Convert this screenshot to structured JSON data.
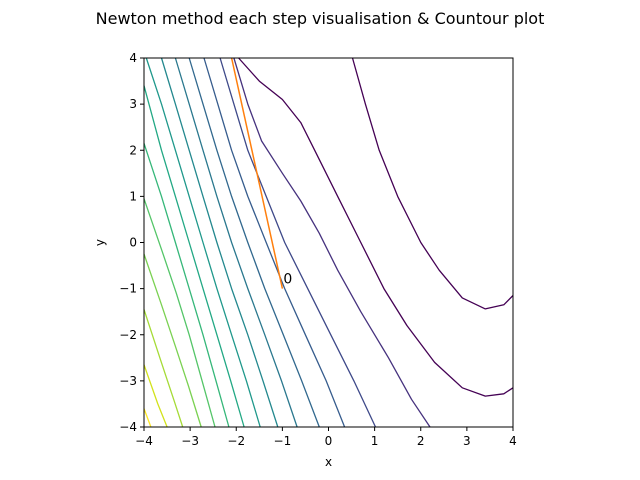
{
  "chart_data": {
    "type": "contour",
    "title": "Newton method each step visualisation & Countour plot",
    "xlabel": "x",
    "ylabel": "y",
    "xlim": [
      -4,
      4
    ],
    "ylim": [
      -4,
      4
    ],
    "xticks": [
      -4,
      -3,
      -2,
      -1,
      0,
      1,
      2,
      3,
      4
    ],
    "yticks": [
      -4,
      -3,
      -2,
      -1,
      0,
      1,
      2,
      3,
      4
    ],
    "grid": false,
    "contour_lines": [
      {
        "color": "#440154",
        "points": [
          [
            0.52,
            4.0
          ],
          [
            0.8,
            3.0
          ],
          [
            1.1,
            2.0
          ],
          [
            1.5,
            1.0
          ],
          [
            2.0,
            0.0
          ],
          [
            2.4,
            -0.6
          ],
          [
            2.9,
            -1.2
          ],
          [
            3.4,
            -1.44
          ],
          [
            3.8,
            -1.35
          ],
          [
            4.0,
            -1.15
          ]
        ]
      },
      {
        "color": "#440154",
        "points": [
          [
            -1.95,
            4.0
          ],
          [
            -1.5,
            3.5
          ],
          [
            -1.0,
            3.1
          ],
          [
            -0.6,
            2.6
          ],
          [
            -0.3,
            2.0
          ],
          [
            0.2,
            1.0
          ],
          [
            0.7,
            0.0
          ],
          [
            1.2,
            -1.0
          ],
          [
            1.7,
            -1.8
          ],
          [
            2.3,
            -2.6
          ],
          [
            2.9,
            -3.15
          ],
          [
            3.4,
            -3.33
          ],
          [
            3.8,
            -3.28
          ],
          [
            4.0,
            -3.15
          ]
        ]
      },
      {
        "color": "#46327e",
        "points": [
          [
            -2.05,
            4.0
          ],
          [
            -1.75,
            3.0
          ],
          [
            -1.45,
            2.2
          ],
          [
            -1.0,
            1.5
          ],
          [
            -0.6,
            0.9
          ],
          [
            -0.2,
            0.2
          ],
          [
            0.2,
            -0.6
          ],
          [
            0.7,
            -1.5
          ],
          [
            1.3,
            -2.5
          ],
          [
            1.8,
            -3.4
          ],
          [
            2.2,
            -4.0
          ]
        ]
      },
      {
        "color": "#3e4989",
        "points": [
          [
            -2.35,
            4.0
          ],
          [
            -2.05,
            3.0
          ],
          [
            -1.75,
            2.0
          ],
          [
            -1.35,
            1.0
          ],
          [
            -0.95,
            0.0
          ],
          [
            -0.45,
            -1.0
          ],
          [
            0.05,
            -2.0
          ],
          [
            0.55,
            -3.0
          ],
          [
            1.02,
            -4.0
          ]
        ]
      },
      {
        "color": "#365c8d",
        "points": [
          [
            -2.7,
            4.0
          ],
          [
            -2.4,
            3.0
          ],
          [
            -2.1,
            2.0
          ],
          [
            -1.75,
            1.0
          ],
          [
            -1.35,
            0.0
          ],
          [
            -0.95,
            -1.0
          ],
          [
            -0.5,
            -2.0
          ],
          [
            -0.05,
            -3.0
          ],
          [
            0.35,
            -4.0
          ]
        ]
      },
      {
        "color": "#31688e",
        "points": [
          [
            -3.02,
            4.0
          ],
          [
            -2.72,
            3.0
          ],
          [
            -2.42,
            2.0
          ],
          [
            -2.1,
            1.0
          ],
          [
            -1.75,
            0.0
          ],
          [
            -1.38,
            -1.0
          ],
          [
            -0.98,
            -2.0
          ],
          [
            -0.58,
            -3.0
          ],
          [
            -0.2,
            -4.0
          ]
        ]
      },
      {
        "color": "#2a788e",
        "points": [
          [
            -3.32,
            4.0
          ],
          [
            -3.02,
            3.0
          ],
          [
            -2.72,
            2.0
          ],
          [
            -2.42,
            1.0
          ],
          [
            -2.1,
            0.0
          ],
          [
            -1.75,
            -1.0
          ],
          [
            -1.38,
            -2.0
          ],
          [
            -1.02,
            -3.0
          ],
          [
            -0.68,
            -4.0
          ]
        ]
      },
      {
        "color": "#23888e",
        "points": [
          [
            -3.62,
            4.0
          ],
          [
            -3.32,
            3.0
          ],
          [
            -3.02,
            2.0
          ],
          [
            -2.72,
            1.0
          ],
          [
            -2.42,
            0.0
          ],
          [
            -2.1,
            -1.0
          ],
          [
            -1.75,
            -2.0
          ],
          [
            -1.42,
            -3.0
          ],
          [
            -1.1,
            -4.0
          ]
        ]
      },
      {
        "color": "#1f988b",
        "points": [
          [
            -3.95,
            4.0
          ],
          [
            -3.62,
            3.0
          ],
          [
            -3.32,
            2.0
          ],
          [
            -3.02,
            1.0
          ],
          [
            -2.72,
            0.0
          ],
          [
            -2.42,
            -1.0
          ],
          [
            -2.1,
            -2.0
          ],
          [
            -1.78,
            -3.0
          ],
          [
            -1.48,
            -4.0
          ]
        ]
      },
      {
        "color": "#22a884",
        "points": [
          [
            -4.0,
            3.4
          ],
          [
            -3.62,
            2.0
          ],
          [
            -3.32,
            1.0
          ],
          [
            -3.02,
            0.0
          ],
          [
            -2.72,
            -1.0
          ],
          [
            -2.42,
            -2.0
          ],
          [
            -2.12,
            -3.0
          ],
          [
            -1.83,
            -4.0
          ]
        ]
      },
      {
        "color": "#35b779",
        "points": [
          [
            -4.0,
            2.15
          ],
          [
            -3.62,
            1.0
          ],
          [
            -3.32,
            0.0
          ],
          [
            -3.02,
            -1.0
          ],
          [
            -2.72,
            -2.0
          ],
          [
            -2.44,
            -3.0
          ],
          [
            -2.16,
            -4.0
          ]
        ]
      },
      {
        "color": "#54c568",
        "points": [
          [
            -4.0,
            0.95
          ],
          [
            -3.62,
            -0.15
          ],
          [
            -3.3,
            -1.1
          ],
          [
            -3.02,
            -2.0
          ],
          [
            -2.74,
            -3.0
          ],
          [
            -2.46,
            -4.0
          ]
        ]
      },
      {
        "color": "#7ad151",
        "points": [
          [
            -4.0,
            -0.25
          ],
          [
            -3.62,
            -1.35
          ],
          [
            -3.32,
            -2.25
          ],
          [
            -3.04,
            -3.1
          ],
          [
            -2.76,
            -4.0
          ]
        ]
      },
      {
        "color": "#a5db36",
        "points": [
          [
            -4.0,
            -1.45
          ],
          [
            -3.64,
            -2.55
          ],
          [
            -3.34,
            -3.45
          ],
          [
            -3.16,
            -4.0
          ]
        ]
      },
      {
        "color": "#d2e21b",
        "points": [
          [
            -4.0,
            -2.65
          ],
          [
            -3.7,
            -3.5
          ],
          [
            -3.5,
            -4.0
          ]
        ]
      },
      {
        "color": "#fde725",
        "points": [
          [
            -4.0,
            -3.6
          ],
          [
            -3.85,
            -4.0
          ]
        ]
      }
    ],
    "newton_path": {
      "color": "#ff7f0e",
      "points": [
        [
          -1.0,
          -1.0
        ],
        [
          -2.1,
          4.0
        ]
      ]
    },
    "annotation": {
      "text": "0",
      "x": -1.0,
      "y": -1.0
    }
  }
}
